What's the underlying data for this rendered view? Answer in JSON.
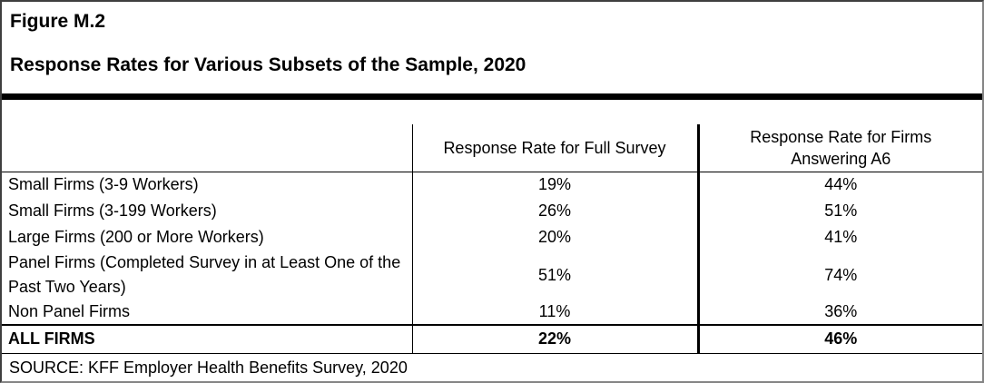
{
  "figure": {
    "label": "Figure M.2",
    "title": "Response Rates for Various Subsets of the Sample, 2020"
  },
  "table": {
    "columns": [
      "",
      "Response Rate for Full Survey",
      "Response Rate for Firms Answering A6"
    ],
    "rows": [
      {
        "label": "Small Firms (3-9 Workers)",
        "full_survey": "19%",
        "answering_a6": "44%"
      },
      {
        "label": "Small Firms (3-199 Workers)",
        "full_survey": "26%",
        "answering_a6": "51%"
      },
      {
        "label": "Large Firms (200 or More Workers)",
        "full_survey": "20%",
        "answering_a6": "41%"
      },
      {
        "label": "Panel Firms (Completed Survey in at Least One of the Past Two Years)",
        "full_survey": "51%",
        "answering_a6": "74%"
      },
      {
        "label": "Non Panel Firms",
        "full_survey": "11%",
        "answering_a6": "36%"
      }
    ],
    "total_row": {
      "label": "ALL FIRMS",
      "full_survey": "22%",
      "answering_a6": "46%"
    }
  },
  "source": "SOURCE: KFF Employer Health Benefits Survey, 2020",
  "colors": {
    "text": "#000000",
    "background": "#ffffff",
    "rule": "#000000",
    "frame": "#858585"
  }
}
